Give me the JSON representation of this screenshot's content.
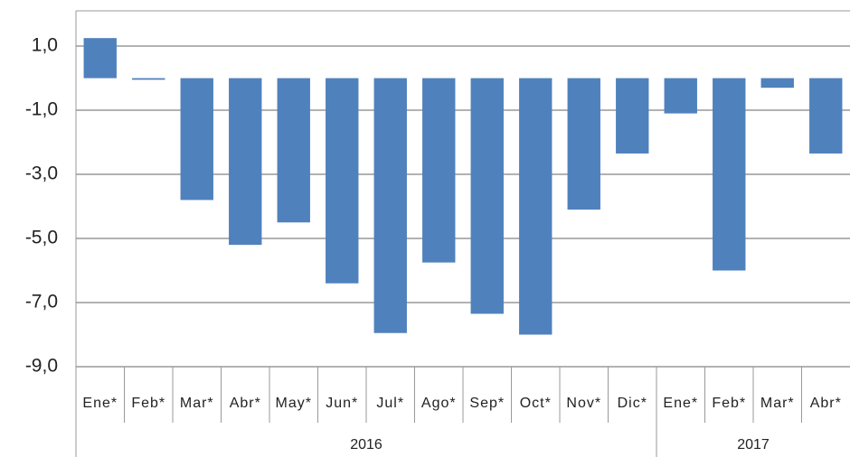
{
  "chart_data": {
    "type": "bar",
    "categories": [
      "Ene*",
      "Feb*",
      "Mar*",
      "Abr*",
      "May*",
      "Jun*",
      "Jul*",
      "Ago*",
      "Sep*",
      "Oct*",
      "Nov*",
      "Dic*",
      "Ene*",
      "Feb*",
      "Mar*",
      "Abr*"
    ],
    "values": [
      1.25,
      -0.05,
      -3.8,
      -5.2,
      -4.5,
      -6.4,
      -7.95,
      -5.75,
      -7.35,
      -8.0,
      -4.1,
      -2.35,
      -1.1,
      -6.0,
      -0.3,
      -2.35
    ],
    "color": "#4f81bd",
    "groups": [
      {
        "name": "2016",
        "start": 0,
        "end": 11
      },
      {
        "name": "2017",
        "start": 12,
        "end": 15
      }
    ],
    "ylim": [
      -9,
      2.1
    ],
    "yticks": [
      {
        "value": -9,
        "label": "-9,0"
      },
      {
        "value": -7,
        "label": "-7,0"
      },
      {
        "value": -5,
        "label": "-5,0"
      },
      {
        "value": -3,
        "label": "-3,0"
      },
      {
        "value": -1,
        "label": "-1,0"
      },
      {
        "value": 1,
        "label": "1,0"
      }
    ],
    "grid": true
  }
}
